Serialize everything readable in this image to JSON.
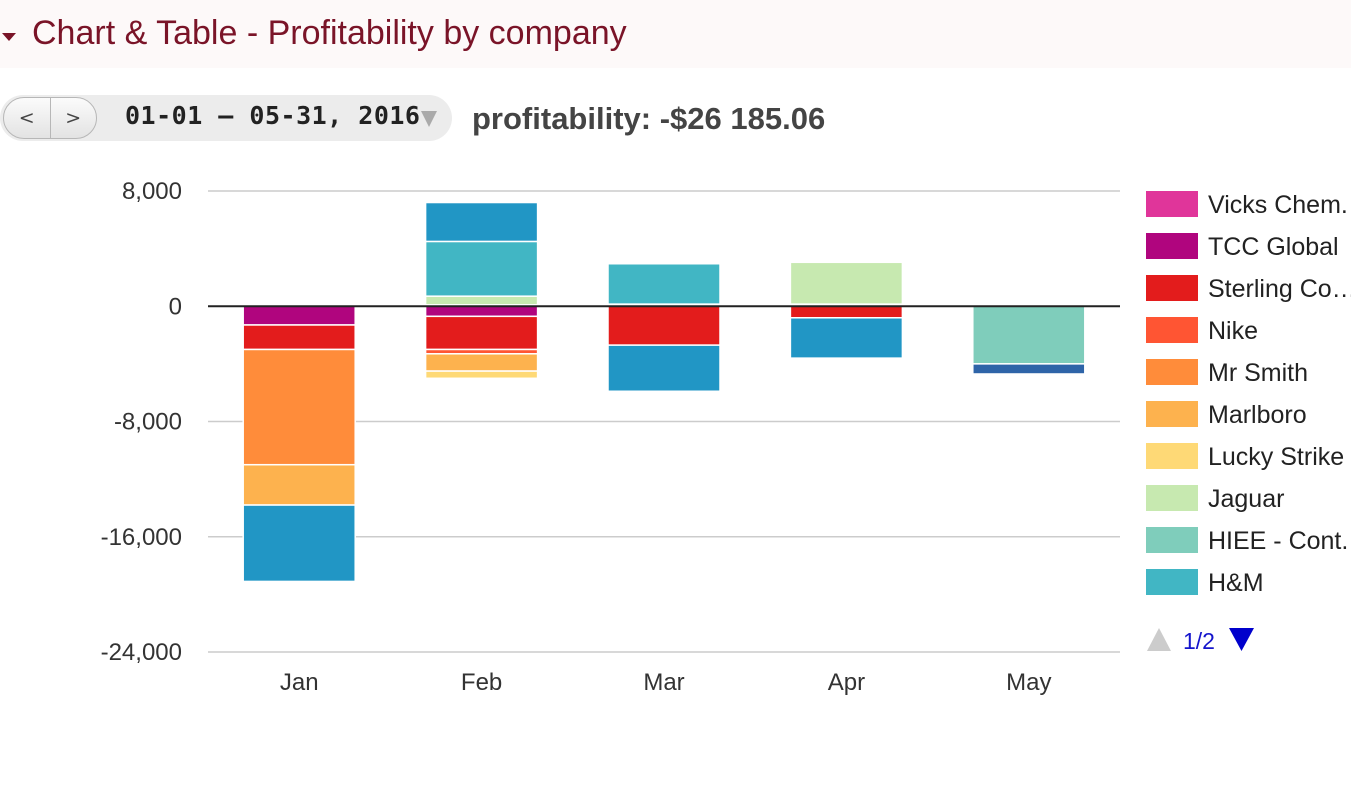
{
  "header": {
    "title": "Chart & Table - Profitability by company"
  },
  "controls": {
    "prev_label": "<",
    "next_label": ">",
    "date_range": "01-01 – 05-31, 2016",
    "summary": "profitability: -$26 185.06"
  },
  "colors": {
    "title": "#7a1428",
    "zero_line": "#222222",
    "grid": "#cccccc",
    "pager_active": "#0000cc",
    "pager_inactive": "#cccccc"
  },
  "legend": {
    "pager_text": "1/2",
    "items": [
      {
        "label": "Vicks Chem.",
        "color": "#e0359a"
      },
      {
        "label": "TCC Global",
        "color": "#b0057e"
      },
      {
        "label": "Sterling Co…",
        "color": "#e31c1c"
      },
      {
        "label": "Nike",
        "color": "#ff5533"
      },
      {
        "label": "Mr Smith",
        "color": "#ff8c3a"
      },
      {
        "label": "Marlboro",
        "color": "#fdb24e"
      },
      {
        "label": "Lucky Strike",
        "color": "#fed976"
      },
      {
        "label": "Jaguar",
        "color": "#c7e9b0"
      },
      {
        "label": "HIEE - Cont.",
        "color": "#7fcdbb"
      },
      {
        "label": "H&M",
        "color": "#41b6c4"
      }
    ]
  },
  "chart_data": {
    "type": "bar",
    "stacked": true,
    "categories": [
      "Jan",
      "Feb",
      "Mar",
      "Apr",
      "May"
    ],
    "ylim": [
      -24000,
      8000
    ],
    "yticks": [
      8000,
      0,
      -8000,
      -16000,
      -24000
    ],
    "ytick_labels": [
      "8,000",
      "0",
      "-8,000",
      "-16,000",
      "-24,000"
    ],
    "grid": true,
    "legend_position": "right",
    "series": [
      {
        "name": "Vicks Chem.",
        "color": "#e0359a",
        "values": [
          0,
          100,
          50,
          50,
          0
        ]
      },
      {
        "name": "TCC Global",
        "color": "#b0057e",
        "values": [
          -1300,
          -700,
          100,
          100,
          0
        ]
      },
      {
        "name": "Sterling Co…",
        "color": "#e31c1c",
        "values": [
          -1700,
          -2300,
          -2700,
          -800,
          0
        ]
      },
      {
        "name": "Nike",
        "color": "#ff5533",
        "values": [
          0,
          -300,
          0,
          0,
          0
        ]
      },
      {
        "name": "Mr Smith",
        "color": "#ff8c3a",
        "values": [
          -8000,
          0,
          0,
          0,
          0
        ]
      },
      {
        "name": "Marlboro",
        "color": "#fdb24e",
        "values": [
          -2800,
          -1200,
          0,
          0,
          0
        ]
      },
      {
        "name": "Lucky Strike",
        "color": "#fed976",
        "values": [
          0,
          -500,
          0,
          0,
          0
        ]
      },
      {
        "name": "Jaguar",
        "color": "#c7e9b0",
        "values": [
          0,
          600,
          0,
          2900,
          0
        ]
      },
      {
        "name": "HIEE - Cont.",
        "color": "#7fcdbb",
        "values": [
          0,
          0,
          0,
          0,
          -4000
        ]
      },
      {
        "name": "H&M",
        "color": "#41b6c4",
        "values": [
          0,
          3800,
          2800,
          0,
          0
        ]
      },
      {
        "name": "",
        "color": "#2196c5",
        "values": [
          -5300,
          2700,
          -3200,
          -2800,
          0
        ]
      },
      {
        "name": "",
        "color": "#2e64a8",
        "values": [
          0,
          0,
          0,
          0,
          -700
        ]
      }
    ]
  }
}
